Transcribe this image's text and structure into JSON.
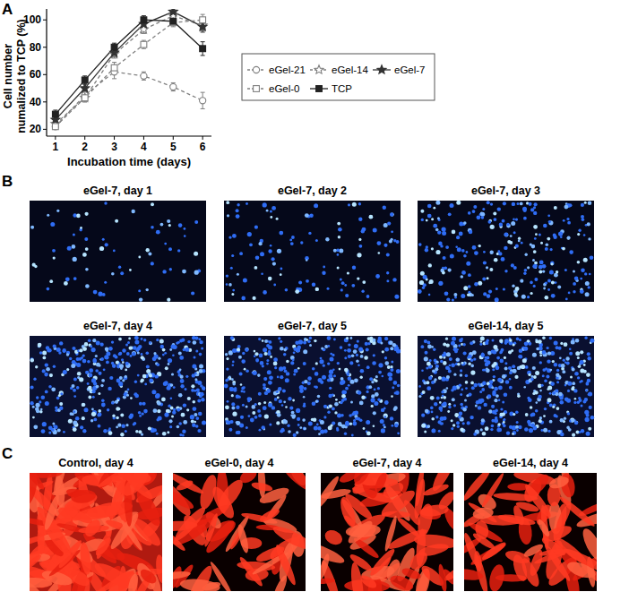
{
  "chart_data": {
    "type": "line",
    "xlabel": "Incubation time (days)",
    "ylabel": [
      "Cell number",
      "numalized to TCP (%)"
    ],
    "x": [
      1,
      2,
      3,
      4,
      5,
      6
    ],
    "xlim": [
      0.7,
      6.3
    ],
    "xticks": [
      1,
      2,
      3,
      4,
      5,
      6
    ],
    "ylim": [
      15,
      108
    ],
    "yticks": [
      20,
      40,
      60,
      80,
      100
    ],
    "legend": "right",
    "series": [
      {
        "name": "eGel-21",
        "color": "#808080",
        "marker": "circle-open",
        "line_style": "dashed",
        "values": [
          22,
          45,
          62,
          59,
          51,
          41
        ],
        "errors": [
          2,
          3,
          5,
          3,
          3,
          6
        ]
      },
      {
        "name": "eGel-14",
        "color": "#808080",
        "marker": "star-open",
        "line_style": "dashed",
        "values": [
          24,
          43,
          75,
          93,
          103,
          96
        ],
        "errors": [
          2,
          3,
          3,
          3,
          3,
          4
        ]
      },
      {
        "name": "eGel-7",
        "color": "#333333",
        "marker": "star",
        "line_style": "solid",
        "values": [
          27,
          50,
          76,
          97,
          106,
          95
        ],
        "errors": [
          2,
          3,
          3,
          3,
          2,
          4
        ]
      },
      {
        "name": "eGel-0",
        "color": "#808080",
        "marker": "square-open",
        "line_style": "dashed",
        "values": [
          22,
          43,
          65,
          82,
          98,
          100
        ],
        "errors": [
          2,
          3,
          4,
          3,
          3,
          4
        ]
      },
      {
        "name": "TCP",
        "color": "#222222",
        "marker": "square",
        "line_style": "solid",
        "values": [
          31,
          56,
          80,
          100,
          99,
          79
        ],
        "errors": [
          3,
          3,
          3,
          3,
          3,
          5
        ]
      }
    ]
  },
  "figure": {
    "panel_labels": [
      "A",
      "B",
      "C"
    ],
    "panel_b": {
      "images": [
        {
          "title": "eGel-7, day 1"
        },
        {
          "title": "eGel-7, day 2"
        },
        {
          "title": "eGel-7, day 3"
        },
        {
          "title": "eGel-7, day 4"
        },
        {
          "title": "eGel-7, day 5"
        },
        {
          "title": "eGel-14, day 5"
        }
      ]
    },
    "panel_c": {
      "images": [
        {
          "title": "Control, day 4"
        },
        {
          "title": "eGel-0, day 4"
        },
        {
          "title": "eGel-7, day 4"
        },
        {
          "title": "eGel-14, day 4"
        }
      ]
    }
  }
}
